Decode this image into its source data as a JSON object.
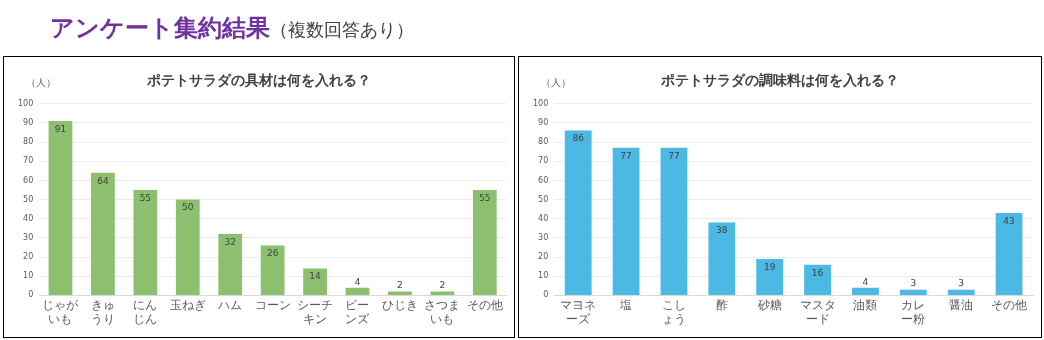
{
  "chart_data": [
    {
      "type": "other",
      "title": "アンケート集約結果",
      "subtitle": "（複数回答あり）"
    },
    {
      "type": "bar",
      "title": "ポテトサラダの具材は何を入れる？",
      "ylabel": "（人）",
      "categories": [
        "じゃがいも",
        "きゅうり",
        "にんじん",
        "玉ねぎ",
        "ハム",
        "コーン",
        "シーチキン",
        "ビーンズ",
        "ひじき",
        "さつまいも",
        "その他"
      ],
      "values": [
        91,
        64,
        55,
        50,
        32,
        26,
        14,
        4,
        2,
        2,
        55
      ],
      "color": "#8cc06e",
      "ylim": [
        0,
        100
      ],
      "yticks": [
        0,
        10,
        20,
        30,
        40,
        50,
        60,
        70,
        80,
        90,
        100
      ],
      "grid": "y",
      "data_labels": true,
      "legend": false
    },
    {
      "type": "bar",
      "title": "ポテトサラダの調味料は何を入れる？",
      "ylabel": "（人）",
      "categories": [
        "マヨネーズ",
        "塩",
        "こしょう",
        "酢",
        "砂糖",
        "マスタード",
        "油類",
        "カレー粉",
        "醤油",
        "その他"
      ],
      "values": [
        86,
        77,
        77,
        38,
        19,
        16,
        4,
        3,
        3,
        43
      ],
      "color": "#4cb8e4",
      "ylim": [
        0,
        100
      ],
      "yticks": [
        0,
        10,
        20,
        30,
        40,
        50,
        60,
        70,
        80,
        90,
        100
      ],
      "grid": "y",
      "data_labels": true,
      "legend": false
    }
  ]
}
